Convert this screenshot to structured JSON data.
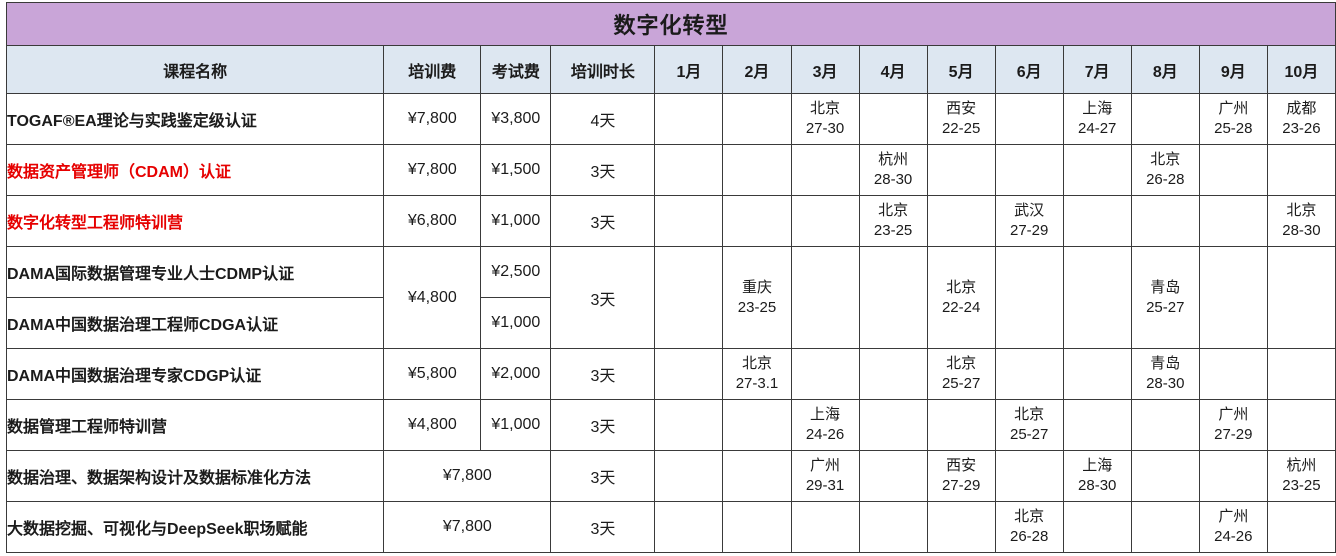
{
  "title": "数字化转型",
  "colors": {
    "title_bg": "#c9a5d8",
    "header_bg": "#dde7f1",
    "border": "#3a3a3a",
    "red_text": "#e60000"
  },
  "header": {
    "columns": [
      "课程名称",
      "培训费",
      "考试费",
      "培训时长",
      "1月",
      "2月",
      "3月",
      "4月",
      "5月",
      "6月",
      "7月",
      "8月",
      "9月",
      "10月"
    ]
  },
  "rows": [
    {
      "name": "TOGAF®EA理论与实践鉴定级认证",
      "red": false,
      "train_fee": "¥7,800",
      "exam_fee": "¥3,800",
      "duration": "4天",
      "months": {
        "3月": [
          "北京",
          "27-30"
        ],
        "5月": [
          "西安",
          "22-25"
        ],
        "7月": [
          "上海",
          "24-27"
        ],
        "9月": [
          "广州",
          "25-28"
        ],
        "10月": [
          "成都",
          "23-26"
        ]
      }
    },
    {
      "name": "数据资产管理师（CDAM）认证",
      "red": true,
      "train_fee": "¥7,800",
      "exam_fee": "¥1,500",
      "duration": "3天",
      "months": {
        "4月": [
          "杭州",
          "28-30"
        ],
        "8月": [
          "北京",
          "26-28"
        ]
      }
    },
    {
      "name": "数字化转型工程师特训营",
      "red": true,
      "train_fee": "¥6,800",
      "exam_fee": "¥1,000",
      "duration": "3天",
      "months": {
        "4月": [
          "北京",
          "23-25"
        ],
        "6月": [
          "武汉",
          "27-29"
        ],
        "10月": [
          "北京",
          "28-30"
        ]
      }
    },
    {
      "name": "DAMA国际数据管理专业人士CDMP认证",
      "red": false,
      "train_fee": "¥4,800",
      "train_fee_rowspan": 2,
      "exam_fee": "¥2,500",
      "duration": "3天",
      "duration_rowspan": 2,
      "months_rowspan": 2,
      "months": {
        "2月": [
          "重庆",
          "23-25"
        ],
        "5月": [
          "北京",
          "22-24"
        ],
        "8月": [
          "青岛",
          "25-27"
        ]
      }
    },
    {
      "name": "DAMA中国数据治理工程师CDGA认证",
      "red": false,
      "skip_train_fee": true,
      "exam_fee": "¥1,000",
      "skip_duration": true,
      "skip_months": true
    },
    {
      "name": "DAMA中国数据治理专家CDGP认证",
      "red": false,
      "train_fee": "¥5,800",
      "exam_fee": "¥2,000",
      "duration": "3天",
      "months": {
        "2月": [
          "北京",
          "27-3.1"
        ],
        "5月": [
          "北京",
          "25-27"
        ],
        "8月": [
          "青岛",
          "28-30"
        ]
      }
    },
    {
      "name": "数据管理工程师特训营",
      "red": false,
      "train_fee": "¥4,800",
      "exam_fee": "¥1,000",
      "duration": "3天",
      "months": {
        "3月": [
          "上海",
          "24-26"
        ],
        "6月": [
          "北京",
          "25-27"
        ],
        "9月": [
          "广州",
          "27-29"
        ]
      }
    },
    {
      "name": "数据治理、数据架构设计及数据标准化方法",
      "red": false,
      "train_fee": "¥7,800",
      "fee_colspan": 2,
      "duration": "3天",
      "months": {
        "3月": [
          "广州",
          "29-31"
        ],
        "5月": [
          "西安",
          "27-29"
        ],
        "7月": [
          "上海",
          "28-30"
        ],
        "10月": [
          "杭州",
          "23-25"
        ]
      }
    },
    {
      "name": "大数据挖掘、可视化与DeepSeek职场赋能",
      "red": false,
      "train_fee": "¥7,800",
      "fee_colspan": 2,
      "duration": "3天",
      "months": {
        "6月": [
          "北京",
          "26-28"
        ],
        "9月": [
          "广州",
          "24-26"
        ]
      }
    }
  ]
}
